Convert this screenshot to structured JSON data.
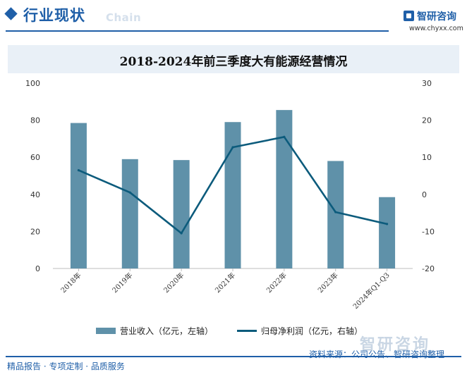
{
  "header": {
    "section_title": "行业现状",
    "watermark_text": "Chain",
    "brand_name": "智研咨询",
    "brand_url": "www.chyxx.com"
  },
  "chart_data": {
    "type": "bar",
    "title": "2018-2024年前三季度大有能源经营情况",
    "categories": [
      "2018年",
      "2019年",
      "2020年",
      "2021年",
      "2022年",
      "2023年",
      "2024年Q1-Q3"
    ],
    "left_axis": {
      "min": 0,
      "max": 100,
      "ticks": [
        0,
        20,
        40,
        60,
        80,
        100
      ]
    },
    "right_axis": {
      "min": -20,
      "max": 30,
      "ticks": [
        -20,
        -10,
        0,
        10,
        20,
        30
      ]
    },
    "grid": false,
    "legend_position": "bottom",
    "series": [
      {
        "name": "营业收入（亿元，左轴）",
        "type": "bar",
        "axis": "left",
        "color": "#5f91a9",
        "values": [
          78.5,
          59,
          58.5,
          79,
          85.5,
          58,
          38.5
        ]
      },
      {
        "name": "归母净利润（亿元，右轴）",
        "type": "line",
        "axis": "right",
        "color": "#0c5b7c",
        "values": [
          6.5,
          0.5,
          -10.5,
          12.7,
          15.5,
          -4.8,
          -8
        ]
      }
    ]
  },
  "footer": {
    "slogan": "精品报告 · 专项定制 · 品质服务",
    "source": "资料来源：公司公告、智研咨询整理",
    "watermark": "智研咨询"
  }
}
